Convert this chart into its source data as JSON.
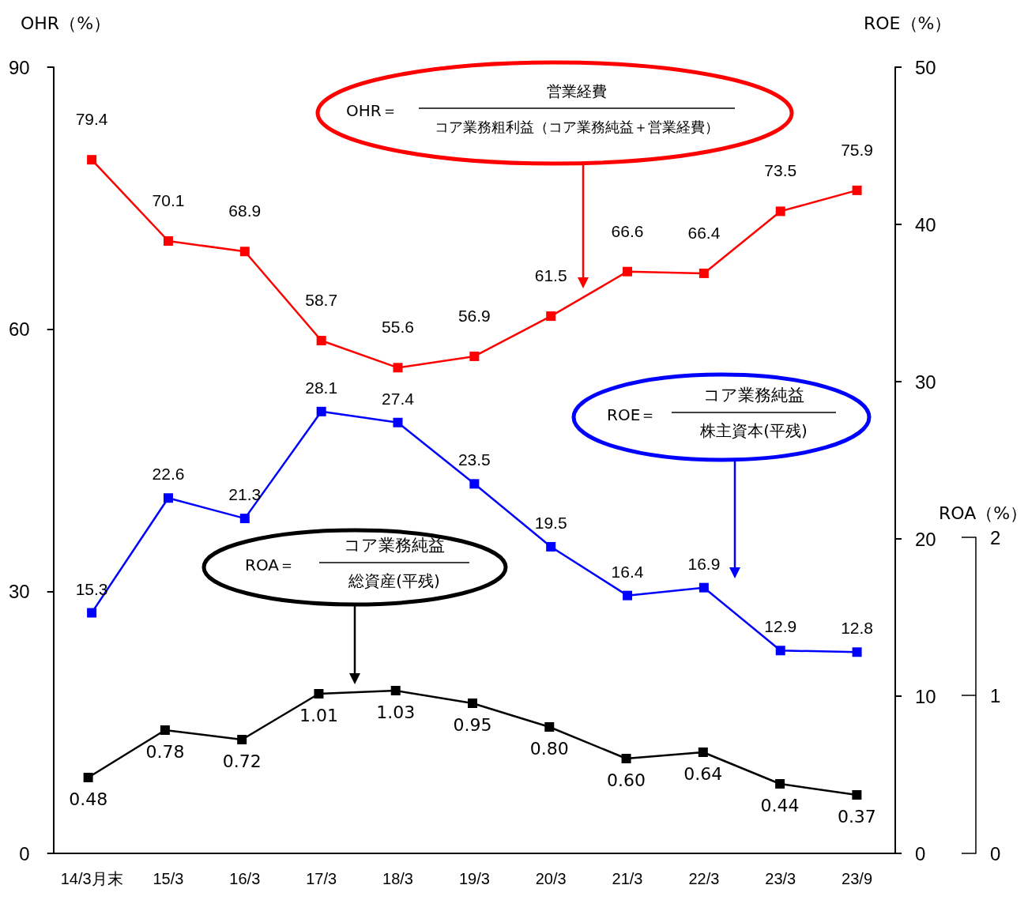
{
  "chart_data": {
    "type": "line",
    "categories": [
      "14/3月末",
      "15/3",
      "16/3",
      "17/3",
      "18/3",
      "19/3",
      "20/3",
      "21/3",
      "22/3",
      "23/3",
      "23/9"
    ],
    "ylabel": "OHR（%）",
    "y2label": "ROE（%）",
    "y3label": "ROA（%）",
    "ylim": [
      0,
      90
    ],
    "yticks": [
      0,
      30,
      60,
      90
    ],
    "y2lim": [
      0,
      50
    ],
    "y2ticks": [
      0,
      10,
      20,
      30,
      40,
      50
    ],
    "y3lim": [
      0,
      2
    ],
    "y3ticks": [
      0,
      1,
      2
    ],
    "series": [
      {
        "color": "#ff0000",
        "values": [
          79.4,
          70.1,
          68.9,
          58.7,
          55.6,
          56.9,
          61.5,
          66.6,
          66.4,
          73.5,
          75.9
        ]
      },
      {
        "color": "#0000ff",
        "axis": "y2",
        "values": [
          15.3,
          22.6,
          21.3,
          28.1,
          27.4,
          23.5,
          19.5,
          16.4,
          16.9,
          12.9,
          12.8
        ]
      },
      {
        "color": "#000000",
        "axis": "y3",
        "values": [
          0.48,
          0.78,
          0.72,
          1.01,
          1.03,
          0.95,
          0.8,
          0.6,
          0.64,
          0.44,
          0.37
        ],
        "value_labels": [
          "0.48",
          "0.78",
          "0.72",
          "1.01",
          "1.03",
          "0.95",
          "0.80",
          "0.60",
          "0.64",
          "0.44",
          "0.37"
        ]
      }
    ],
    "annotations": [
      "OHR＝",
      "営業経費",
      "コア業務粗利益（コア業務純益＋営業経費）",
      "ROE＝",
      "コア業務純益",
      "株主資本(平残)",
      "ROA＝",
      "コア業務純益",
      "総資産(平残)"
    ],
    "data_labels": true,
    "marker": "square",
    "line_style": "solid",
    "grid": false
  }
}
